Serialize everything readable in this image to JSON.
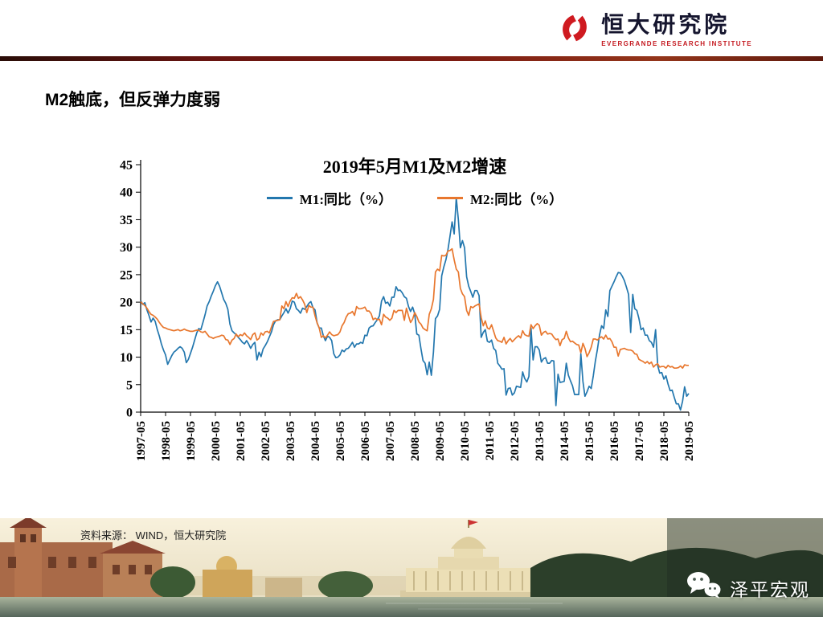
{
  "header": {
    "logo_title": "恒大研究院",
    "logo_subtitle": "EVERGRANDE RESEARCH INSTITUTE"
  },
  "slide": {
    "title": "M2触底，但反弹力度弱",
    "source": "资料来源： WIND，恒大研究院"
  },
  "footer": {
    "wechat_label": "泽平宏观"
  },
  "icons": {
    "logo": "evergrande-logo-icon",
    "wechat": "wechat-icon"
  },
  "colors": {
    "divider_maroon": "#7d1c12",
    "logo_red": "#c4181f",
    "m1_blue": "#2377AE",
    "m2_orange": "#E8772E"
  },
  "chart_data": {
    "type": "line",
    "title": "2019年5月M1及M2增速",
    "xlabel": "",
    "ylabel": "",
    "ylim": [
      0,
      45
    ],
    "y_ticks": [
      0,
      5,
      10,
      15,
      20,
      25,
      30,
      35,
      40,
      45
    ],
    "grid": false,
    "legend_position": "top",
    "x_frequency": "monthly",
    "x_tick_labels": [
      "1997-05",
      "1998-05",
      "1999-05",
      "2000-05",
      "2001-05",
      "2002-05",
      "2003-05",
      "2004-05",
      "2005-05",
      "2006-05",
      "2007-05",
      "2008-05",
      "2009-05",
      "2010-05",
      "2011-05",
      "2012-05",
      "2013-05",
      "2014-05",
      "2015-05",
      "2016-05",
      "2017-05",
      "2018-05",
      "2019-05"
    ],
    "series": [
      {
        "name": "M1:同比（%）",
        "color": "#2377AE",
        "values": [
          20.3,
          19.6,
          19.9,
          18.6,
          17.6,
          16.4,
          17.1,
          16.5,
          15.0,
          13.8,
          12.4,
          11.3,
          10.4,
          8.7,
          9.5,
          10.3,
          10.9,
          11.2,
          11.6,
          11.9,
          11.6,
          10.9,
          9.0,
          9.6,
          10.7,
          11.8,
          13.1,
          14.4,
          15.2,
          15.0,
          16.3,
          17.7,
          19.3,
          20.1,
          21.1,
          22.0,
          23.0,
          23.7,
          22.9,
          21.7,
          20.5,
          19.8,
          18.7,
          16.0,
          14.8,
          14.4,
          14.1,
          13.6,
          13.2,
          12.7,
          12.4,
          13.0,
          12.4,
          11.6,
          12.3,
          12.7,
          9.5,
          10.9,
          10.1,
          11.5,
          12.1,
          12.8,
          13.7,
          14.6,
          15.9,
          16.6,
          16.8,
          16.8,
          17.5,
          18.1,
          18.8,
          18.0,
          18.8,
          20.2,
          20.0,
          18.8,
          18.5,
          18.0,
          18.9,
          18.7,
          19.2,
          19.8,
          20.1,
          19.0,
          18.6,
          16.2,
          15.3,
          15.3,
          13.9,
          13.0,
          13.8,
          13.6,
          13.0,
          10.6,
          9.9,
          10.0,
          10.4,
          11.3,
          11.0,
          11.5,
          11.6,
          12.1,
          12.7,
          11.8,
          12.4,
          12.4,
          12.7,
          12.5,
          14.0,
          13.9,
          15.3,
          15.6,
          15.7,
          16.3,
          16.8,
          17.5,
          20.2,
          21.0,
          19.8,
          20.0,
          19.3,
          20.9,
          20.9,
          22.8,
          22.1,
          22.2,
          21.7,
          21.0,
          20.7,
          19.2,
          18.3,
          19.1,
          17.9,
          14.2,
          14.0,
          11.5,
          9.4,
          8.9,
          6.8,
          9.1,
          6.7,
          10.9,
          17.0,
          17.5,
          18.7,
          24.8,
          26.4,
          27.7,
          29.5,
          32.0,
          34.6,
          32.4,
          39.0,
          35.0,
          29.9,
          31.2,
          29.9,
          24.6,
          22.9,
          21.9,
          20.9,
          22.1,
          22.1,
          21.2,
          13.6,
          14.5,
          15.0,
          12.9,
          12.7,
          13.1,
          11.6,
          11.2,
          8.9,
          8.4,
          7.8,
          7.9,
          3.1,
          4.3,
          4.4,
          3.1,
          3.5,
          4.7,
          4.6,
          4.5,
          7.3,
          6.1,
          5.5,
          6.5,
          15.3,
          9.5,
          11.9,
          11.9,
          11.3,
          9.1,
          9.7,
          9.9,
          8.9,
          8.9,
          9.4,
          9.3,
          1.2,
          6.9,
          5.4,
          5.5,
          5.6,
          8.9,
          6.7,
          5.7,
          4.8,
          3.2,
          3.2,
          3.2,
          10.6,
          5.6,
          2.9,
          3.7,
          4.7,
          4.3,
          6.6,
          9.3,
          11.4,
          14.0,
          15.7,
          15.2,
          18.6,
          17.4,
          22.1,
          22.9,
          23.7,
          24.6,
          25.4,
          25.3,
          24.7,
          23.9,
          22.7,
          21.4,
          14.5,
          21.4,
          18.8,
          18.5,
          17.0,
          15.0,
          15.3,
          14.0,
          14.0,
          13.0,
          12.7,
          11.8,
          15.0,
          8.5,
          7.1,
          7.2,
          6.0,
          6.6,
          5.1,
          3.9,
          4.0,
          2.7,
          1.5,
          1.5,
          0.4,
          2.0,
          4.6,
          2.9,
          3.4
        ]
      },
      {
        "name": "M2:同比（%）",
        "color": "#E8772E",
        "values": [
          20.1,
          19.7,
          19.4,
          18.9,
          18.3,
          17.8,
          17.6,
          17.3,
          16.9,
          16.3,
          15.8,
          15.4,
          15.3,
          15.1,
          15.0,
          14.9,
          14.8,
          14.9,
          15.0,
          14.8,
          14.9,
          15.1,
          14.9,
          14.8,
          14.7,
          14.7,
          14.8,
          14.9,
          14.9,
          14.6,
          14.5,
          14.7,
          14.2,
          13.7,
          13.6,
          13.4,
          13.6,
          13.7,
          13.8,
          14.0,
          13.9,
          13.2,
          13.1,
          12.3,
          13.1,
          13.4,
          14.2,
          13.7,
          14.1,
          13.9,
          14.4,
          13.9,
          13.6,
          13.2,
          14.1,
          14.4,
          13.1,
          13.4,
          14.4,
          14.0,
          14.6,
          14.7,
          14.4,
          15.5,
          16.5,
          16.6,
          16.7,
          16.8,
          19.3,
          18.8,
          20.1,
          19.2,
          20.2,
          20.8,
          20.7,
          21.6,
          20.7,
          21.0,
          20.4,
          19.6,
          18.1,
          19.4,
          19.1,
          19.1,
          17.5,
          16.2,
          15.3,
          13.6,
          13.9,
          13.5,
          14.0,
          14.6,
          14.1,
          13.9,
          14.0,
          14.1,
          14.6,
          15.7,
          16.3,
          17.3,
          17.9,
          18.0,
          18.3,
          17.6,
          19.2,
          18.8,
          18.8,
          18.9,
          19.1,
          18.4,
          18.4,
          17.9,
          16.8,
          17.1,
          16.8,
          16.9,
          15.9,
          17.8,
          17.3,
          17.1,
          16.7,
          17.1,
          18.5,
          18.1,
          18.5,
          18.5,
          18.5,
          16.7,
          18.9,
          17.5,
          16.3,
          16.9,
          18.1,
          17.4,
          16.4,
          16.0,
          15.3,
          15.0,
          14.8,
          17.8,
          18.8,
          20.5,
          25.5,
          26.0,
          25.7,
          28.5,
          28.4,
          28.5,
          29.3,
          29.4,
          29.7,
          27.7,
          26.0,
          25.5,
          22.5,
          21.5,
          21.0,
          18.5,
          17.6,
          19.2,
          19.0,
          19.3,
          19.5,
          19.7,
          17.2,
          15.7,
          16.6,
          15.3,
          15.1,
          15.9,
          14.7,
          13.5,
          13.0,
          12.9,
          12.7,
          13.6,
          12.4,
          13.0,
          13.4,
          12.8,
          13.2,
          13.6,
          13.9,
          13.5,
          14.8,
          14.1,
          13.9,
          13.8,
          15.9,
          15.2,
          15.7,
          16.1,
          15.8,
          14.0,
          14.5,
          14.7,
          14.2,
          14.3,
          14.2,
          13.6,
          13.2,
          13.3,
          12.1,
          13.2,
          13.4,
          14.7,
          13.5,
          12.8,
          12.9,
          12.6,
          12.3,
          12.2,
          10.8,
          12.5,
          11.6,
          10.1,
          10.8,
          11.8,
          13.3,
          13.3,
          13.1,
          13.5,
          13.7,
          13.3,
          14.0,
          13.3,
          13.4,
          12.8,
          11.8,
          11.8,
          10.2,
          11.4,
          11.5,
          11.6,
          11.4,
          11.3,
          11.3,
          11.1,
          10.6,
          10.5,
          9.6,
          9.4,
          9.2,
          8.9,
          9.2,
          8.8,
          9.1,
          8.2,
          8.6,
          8.8,
          8.2,
          8.3,
          8.3,
          8.0,
          8.5,
          8.2,
          8.3,
          8.0,
          8.0,
          8.1,
          8.4,
          8.0,
          8.6,
          8.5,
          8.5
        ]
      }
    ]
  }
}
